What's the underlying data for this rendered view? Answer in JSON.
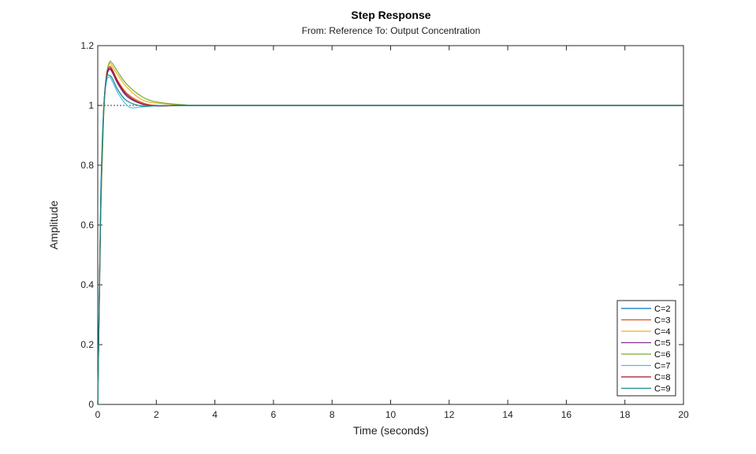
{
  "chart_data": {
    "type": "line",
    "title": "Step Response",
    "subtitle": "From: Reference  To: Output Concentration",
    "xlabel": "Time (seconds)",
    "ylabel": "Amplitude",
    "xlim": [
      0,
      20
    ],
    "ylim": [
      0,
      1.2
    ],
    "xticks": [
      0,
      2,
      4,
      6,
      8,
      10,
      12,
      14,
      16,
      18,
      20
    ],
    "yticks": [
      0,
      0.2,
      0.4,
      0.6,
      0.8,
      1,
      1.2
    ],
    "ytick_labels": [
      "0",
      "0.2",
      "0.4",
      "0.6",
      "0.8",
      "1",
      "1.2"
    ],
    "grid": false,
    "legend_position": "bottom-right",
    "reference_line": {
      "y": 1,
      "style": "dotted",
      "color": "#000000"
    },
    "series": [
      {
        "name": "C=2",
        "color": "#0072bd",
        "x": [
          0,
          0.05,
          0.1,
          0.2,
          0.3,
          0.4,
          0.5,
          0.7,
          1.0,
          1.5,
          2.0,
          3.0,
          4.0,
          20
        ],
        "y": [
          0,
          0.35,
          0.68,
          0.98,
          1.1,
          1.12,
          1.11,
          1.07,
          1.03,
          1.005,
          1.0,
          1.0,
          1.0,
          1.0
        ]
      },
      {
        "name": "C=3",
        "color": "#d95319",
        "x": [
          0,
          0.05,
          0.1,
          0.2,
          0.3,
          0.4,
          0.5,
          0.7,
          1.0,
          1.5,
          2.0,
          3.0,
          4.0,
          20
        ],
        "y": [
          0,
          0.33,
          0.66,
          0.98,
          1.1,
          1.13,
          1.12,
          1.08,
          1.04,
          1.01,
          1.0,
          1.0,
          1.0,
          1.0
        ]
      },
      {
        "name": "C=4",
        "color": "#edb120",
        "x": [
          0,
          0.05,
          0.1,
          0.2,
          0.3,
          0.4,
          0.5,
          0.7,
          1.0,
          1.5,
          2.0,
          3.0,
          4.0,
          20
        ],
        "y": [
          0,
          0.32,
          0.64,
          0.97,
          1.1,
          1.14,
          1.13,
          1.1,
          1.06,
          1.02,
          1.008,
          1.001,
          1.0,
          1.0
        ]
      },
      {
        "name": "C=5",
        "color": "#7e2f8e",
        "x": [
          0,
          0.05,
          0.1,
          0.2,
          0.3,
          0.4,
          0.5,
          0.7,
          1.0,
          1.5,
          2.0,
          3.0,
          4.0,
          20
        ],
        "y": [
          0,
          0.32,
          0.64,
          0.97,
          1.09,
          1.12,
          1.11,
          1.07,
          1.03,
          1.005,
          0.998,
          1.0,
          1.0,
          1.0
        ]
      },
      {
        "name": "C=6",
        "color": "#77ac30",
        "x": [
          0,
          0.05,
          0.1,
          0.2,
          0.3,
          0.4,
          0.5,
          0.7,
          1.0,
          1.5,
          2.0,
          3.0,
          4.0,
          20
        ],
        "y": [
          0,
          0.31,
          0.63,
          0.96,
          1.1,
          1.145,
          1.14,
          1.11,
          1.07,
          1.03,
          1.012,
          1.002,
          1.0,
          1.0
        ]
      },
      {
        "name": "C=7",
        "color": "#4dbeee",
        "x": [
          0,
          0.05,
          0.1,
          0.2,
          0.3,
          0.4,
          0.5,
          0.7,
          1.0,
          1.2,
          1.5,
          2.0,
          3.0,
          20
        ],
        "y": [
          0,
          0.36,
          0.7,
          0.99,
          1.08,
          1.095,
          1.08,
          1.04,
          1.0,
          0.992,
          0.995,
          0.999,
          1.0,
          1.0
        ]
      },
      {
        "name": "C=8",
        "color": "#a2142f",
        "x": [
          0,
          0.05,
          0.1,
          0.2,
          0.3,
          0.4,
          0.5,
          0.7,
          1.0,
          1.5,
          2.0,
          3.0,
          4.0,
          20
        ],
        "y": [
          0,
          0.33,
          0.66,
          0.98,
          1.1,
          1.125,
          1.115,
          1.075,
          1.035,
          1.006,
          0.999,
          1.0,
          1.0,
          1.0
        ]
      },
      {
        "name": "C=9",
        "color": "#1a8a8a",
        "x": [
          0,
          0.05,
          0.1,
          0.2,
          0.3,
          0.4,
          0.5,
          0.7,
          1.0,
          1.5,
          2.0,
          3.0,
          4.0,
          20
        ],
        "y": [
          0,
          0.34,
          0.67,
          0.98,
          1.09,
          1.1,
          1.09,
          1.05,
          1.015,
          0.998,
          0.999,
          1.0,
          1.0,
          1.0
        ]
      }
    ]
  }
}
